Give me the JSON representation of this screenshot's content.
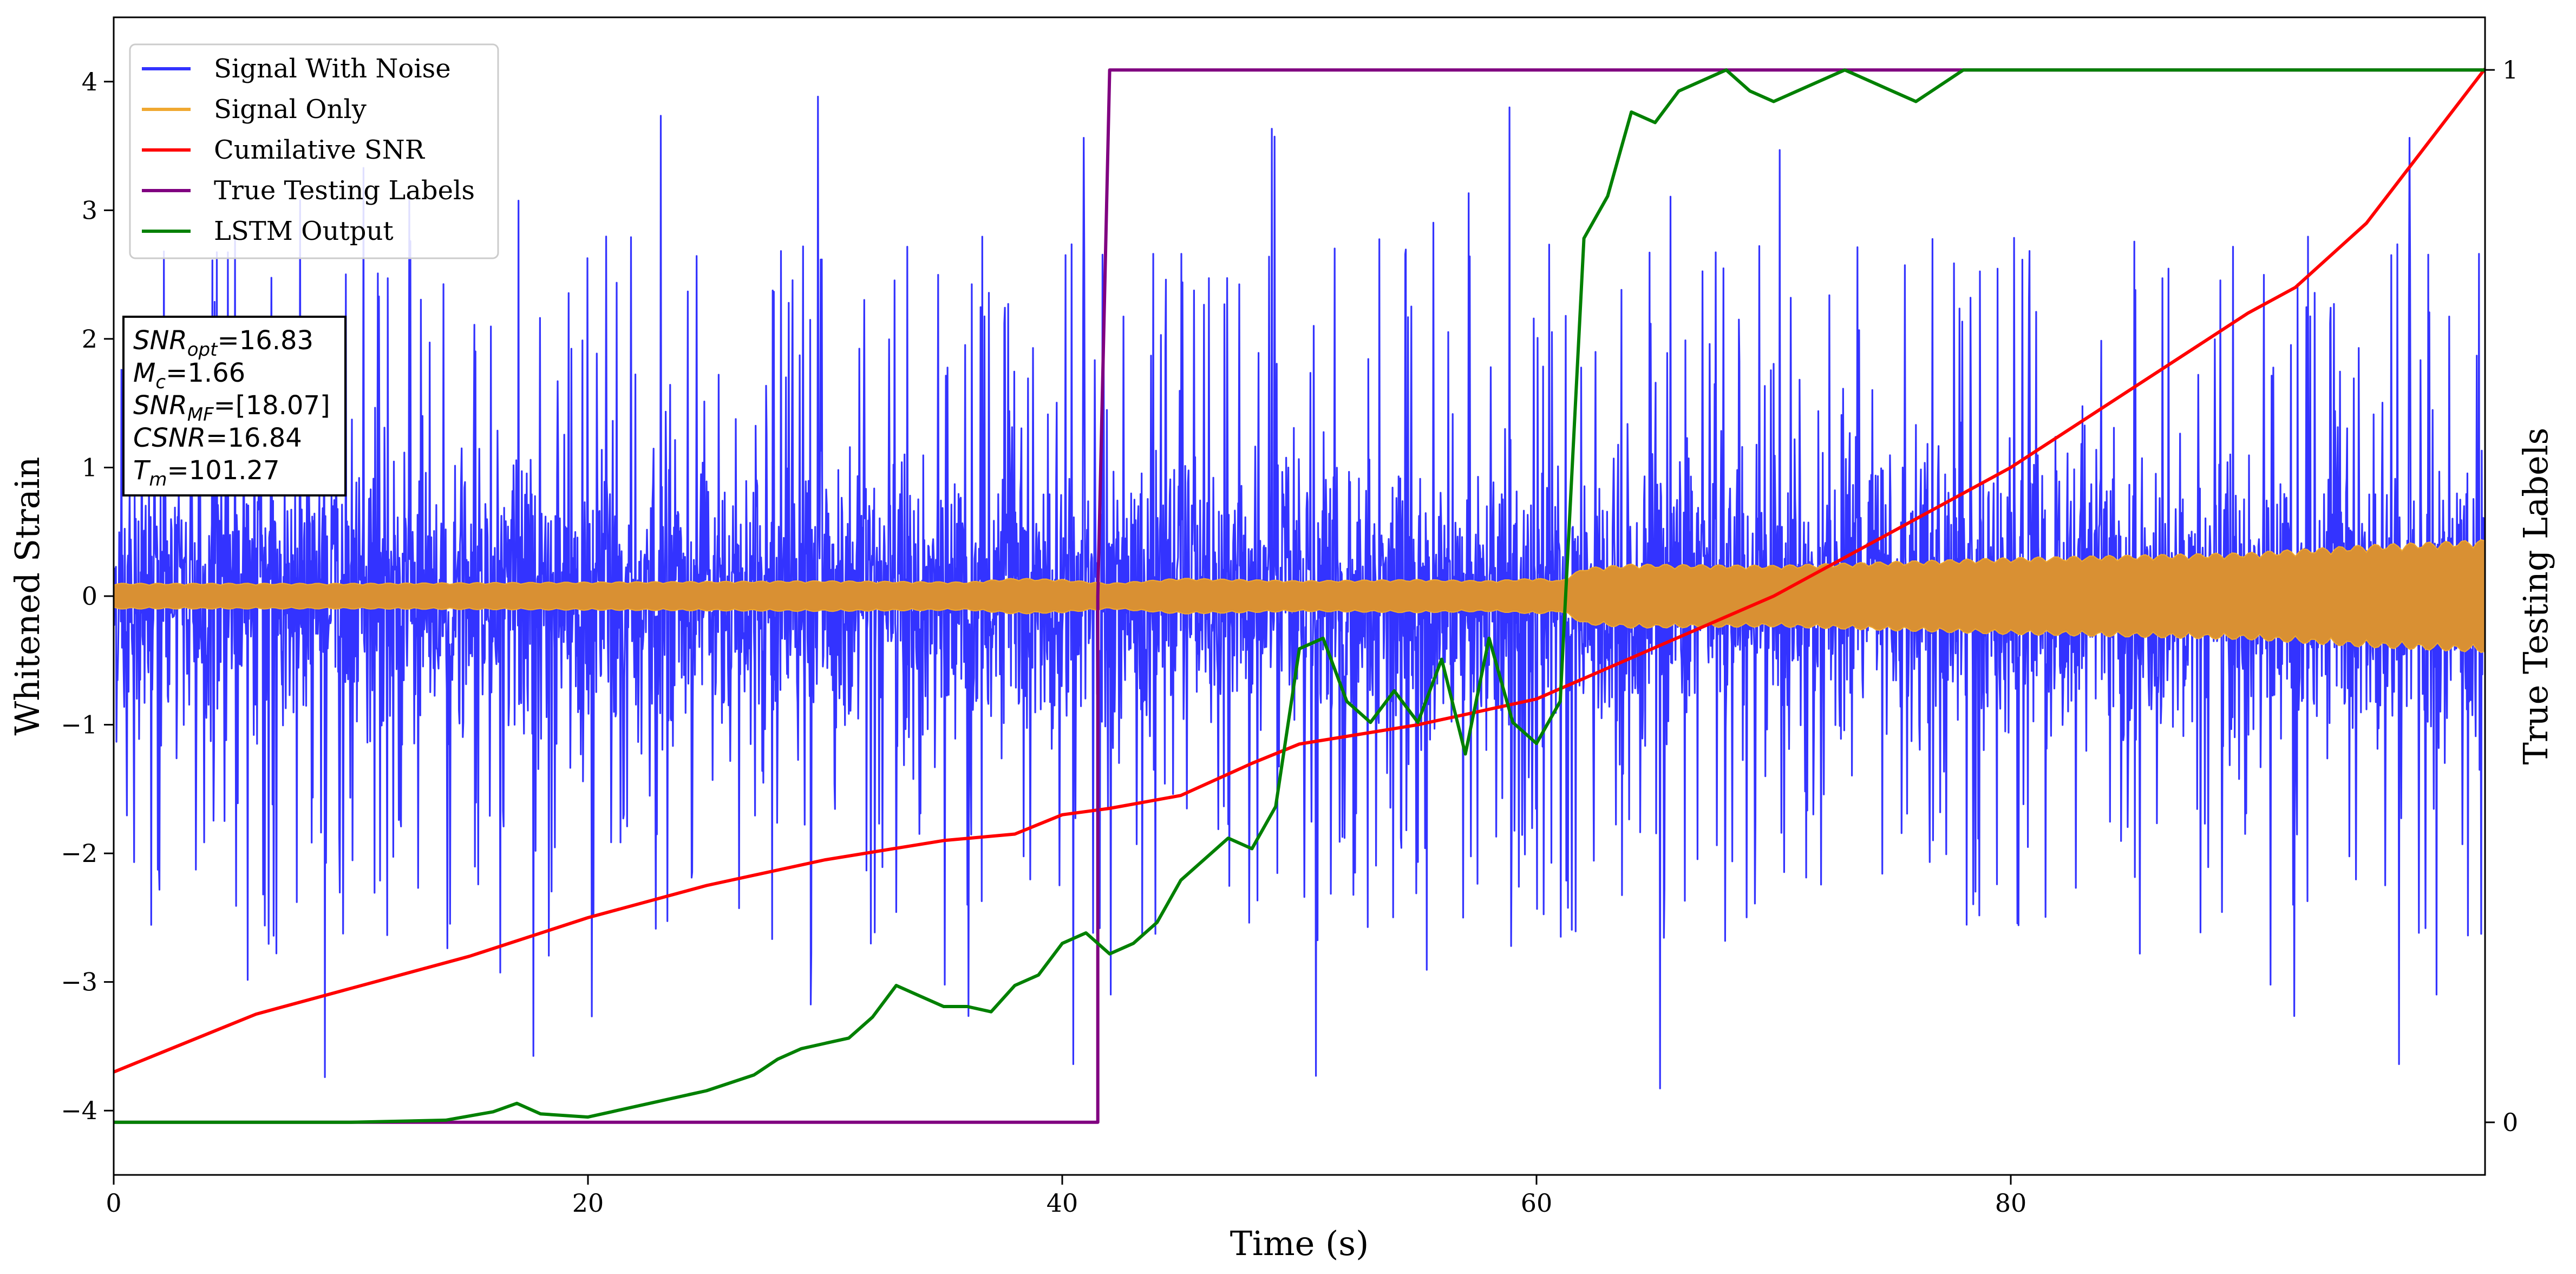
{
  "chart_data": {
    "type": "line",
    "xlabel": "Time (s)",
    "ylabel": "Whitened Strain",
    "ylabel_right": "True Testing Labels",
    "xlim": [
      0,
      100
    ],
    "ylim": [
      -4.5,
      4.5
    ],
    "ylim_right": [
      -0.05,
      1.05
    ],
    "x_ticks": [
      0,
      20,
      40,
      60,
      80
    ],
    "y_ticks": [
      -4,
      -3,
      -2,
      -1,
      0,
      1,
      2,
      3,
      4
    ],
    "y_ticks_right": [
      0,
      1
    ],
    "legend_position": "top-left",
    "grid": false,
    "series": [
      {
        "name": "Signal With Noise",
        "color": "#3333ff",
        "axis": "left",
        "style": "noise",
        "core_amplitude": 0.9,
        "spike_max": 3.9,
        "spike_min": -4.1
      },
      {
        "name": "Signal Only",
        "color": "#f0a830",
        "axis": "left",
        "style": "envelope",
        "x": [
          0,
          10,
          20,
          30,
          36,
          38,
          40,
          42,
          45,
          50,
          55,
          58,
          60,
          61,
          62,
          64,
          70,
          80,
          90,
          95,
          100
        ],
        "envelope": [
          0.1,
          0.1,
          0.11,
          0.12,
          0.11,
          0.14,
          0.13,
          0.1,
          0.14,
          0.12,
          0.13,
          0.12,
          0.14,
          0.12,
          0.22,
          0.25,
          0.24,
          0.3,
          0.34,
          0.4,
          0.44
        ]
      },
      {
        "name": "Cumilative SNR",
        "color": "#ff0000",
        "axis": "left",
        "x": [
          0,
          2,
          4,
          6,
          10,
          15,
          20,
          25,
          30,
          35,
          38,
          40,
          42,
          45,
          48,
          50,
          55,
          60,
          65,
          70,
          75,
          80,
          85,
          90,
          92,
          95,
          100
        ],
        "values": [
          -3.7,
          -3.55,
          -3.4,
          -3.25,
          -3.05,
          -2.8,
          -2.5,
          -2.25,
          -2.05,
          -1.9,
          -1.85,
          -1.7,
          -1.65,
          -1.55,
          -1.3,
          -1.15,
          -1.0,
          -0.8,
          -0.4,
          0.0,
          0.5,
          1.0,
          1.6,
          2.2,
          2.4,
          2.9,
          4.1
        ]
      },
      {
        "name": "True Testing Labels",
        "color": "#800080",
        "axis": "right",
        "x": [
          0,
          41.5,
          41.5,
          42,
          100
        ],
        "values": [
          0,
          0,
          0.5,
          1,
          1
        ]
      },
      {
        "name": "LSTM Output",
        "color": "#008000",
        "axis": "right",
        "x": [
          0,
          10,
          14,
          16,
          17,
          18,
          20,
          21,
          23,
          25,
          27,
          28,
          29,
          30,
          31,
          32,
          33,
          34,
          35,
          36,
          37,
          38,
          39,
          40,
          41,
          42,
          43,
          44,
          45,
          46,
          47,
          48,
          49,
          50,
          51,
          52,
          53,
          54,
          55,
          56,
          57,
          58,
          59,
          60,
          61,
          62,
          63,
          64,
          65,
          66,
          68,
          69,
          70,
          72,
          73,
          74,
          75,
          76,
          78,
          80,
          85,
          90,
          100
        ],
        "values": [
          0,
          0,
          0.002,
          0.01,
          0.018,
          0.008,
          0.005,
          0.01,
          0.02,
          0.03,
          0.045,
          0.06,
          0.07,
          0.075,
          0.08,
          0.1,
          0.13,
          0.12,
          0.11,
          0.11,
          0.105,
          0.13,
          0.14,
          0.17,
          0.18,
          0.16,
          0.17,
          0.19,
          0.23,
          0.25,
          0.27,
          0.26,
          0.3,
          0.45,
          0.46,
          0.4,
          0.38,
          0.41,
          0.38,
          0.44,
          0.35,
          0.46,
          0.38,
          0.36,
          0.4,
          0.84,
          0.88,
          0.96,
          0.95,
          0.98,
          1.0,
          0.98,
          0.97,
          0.99,
          1.0,
          0.99,
          0.98,
          0.97,
          1.0,
          1.0,
          1.0,
          1.0,
          1.0
        ]
      }
    ],
    "annotation_lines": [
      {
        "base": "SNR",
        "sub": "opt",
        "value": "=16.83"
      },
      {
        "base": "M",
        "sub": "c",
        "value": "=1.66"
      },
      {
        "base": "SNR",
        "sub": "MF",
        "value": "=[18.07]"
      },
      {
        "base": "CSNR",
        "sub": "",
        "value": "=16.84"
      },
      {
        "base": "T",
        "sub": "m",
        "value": "=101.27"
      }
    ]
  }
}
